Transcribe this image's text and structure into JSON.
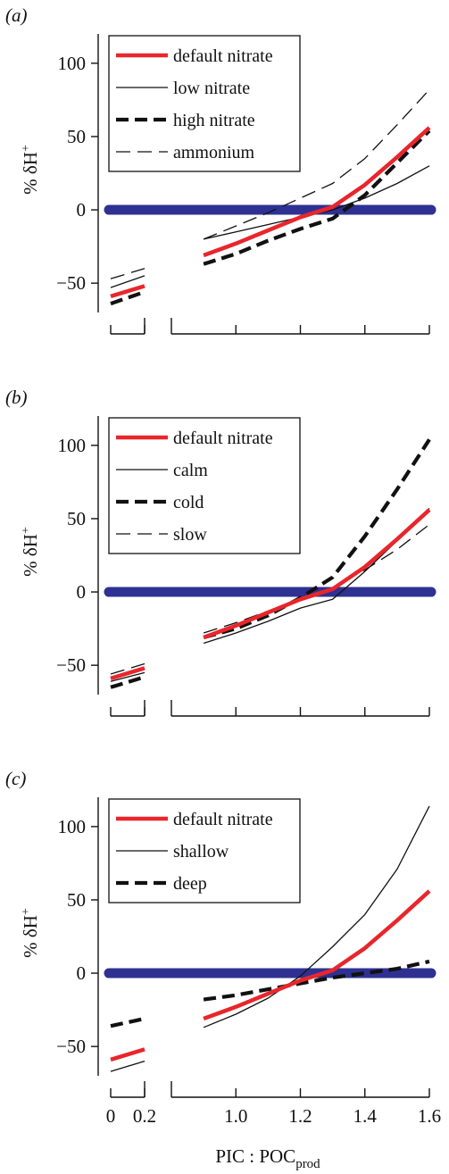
{
  "figure": {
    "shared_xlabel": {
      "main": "PIC : POC",
      "sub": "prod"
    },
    "ylabel": {
      "main": "% δH",
      "sup": "+"
    },
    "x_tick_labels": [
      "0",
      "0.2",
      "1.0",
      "1.2",
      "1.4",
      "1.6"
    ]
  },
  "colors": {
    "default": "#e8262b",
    "black": "#111111",
    "reference": "#2e3192"
  },
  "chart_data": [
    {
      "panel": "(a)",
      "type": "line",
      "xlabel": "",
      "ylabel": "% δH+",
      "ylim": [
        -70,
        120
      ],
      "y_ticks": [
        -50,
        0,
        50,
        100
      ],
      "x_ticks": [
        0,
        0.2,
        1.0,
        1.2,
        1.4,
        1.6
      ],
      "x_break": [
        0.2,
        0.8
      ],
      "legend_position": "top-left",
      "reference_line": {
        "y": 0,
        "x": [
          0,
          1.6
        ]
      },
      "series": [
        {
          "name": "default nitrate",
          "style": "thick-red-solid",
          "segments": [
            {
              "x": [
                0,
                0.2
              ],
              "y": [
                -59,
                -52
              ]
            },
            {
              "x": [
                0.9,
                1.0,
                1.1,
                1.2,
                1.3,
                1.4,
                1.5,
                1.6
              ],
              "y": [
                -31,
                -23,
                -14,
                -5,
                2,
                17,
                36,
                56
              ]
            }
          ]
        },
        {
          "name": "low nitrate",
          "style": "thin-black-solid",
          "segments": [
            {
              "x": [
                0,
                0.2
              ],
              "y": [
                -53,
                -45
              ]
            },
            {
              "x": [
                0.9,
                1.0,
                1.1,
                1.2,
                1.3,
                1.4,
                1.5,
                1.6
              ],
              "y": [
                -20,
                -15,
                -10,
                -5,
                0,
                8,
                18,
                30
              ]
            }
          ]
        },
        {
          "name": "high nitrate",
          "style": "thick-black-dashed",
          "segments": [
            {
              "x": [
                0,
                0.2
              ],
              "y": [
                -64,
                -56
              ]
            },
            {
              "x": [
                0.9,
                1.0,
                1.1,
                1.2,
                1.3,
                1.4,
                1.5,
                1.6
              ],
              "y": [
                -37,
                -30,
                -21,
                -13,
                -6,
                10,
                32,
                54
              ]
            }
          ]
        },
        {
          "name": "ammonium",
          "style": "thin-black-dashed",
          "segments": [
            {
              "x": [
                0,
                0.2
              ],
              "y": [
                -47,
                -40
              ]
            },
            {
              "x": [
                0.9,
                1.0,
                1.1,
                1.2,
                1.3,
                1.4,
                1.5,
                1.6
              ],
              "y": [
                -20,
                -11,
                -2,
                8,
                18,
                35,
                58,
                82
              ]
            }
          ]
        }
      ]
    },
    {
      "panel": "(b)",
      "type": "line",
      "xlabel": "",
      "ylabel": "% δH+",
      "ylim": [
        -70,
        120
      ],
      "y_ticks": [
        -50,
        0,
        50,
        100
      ],
      "x_ticks": [
        0,
        0.2,
        1.0,
        1.2,
        1.4,
        1.6
      ],
      "x_break": [
        0.2,
        0.8
      ],
      "legend_position": "top-left",
      "reference_line": {
        "y": 0,
        "x": [
          0,
          1.6
        ]
      },
      "series": [
        {
          "name": "default nitrate",
          "style": "thick-red-solid",
          "segments": [
            {
              "x": [
                0,
                0.2
              ],
              "y": [
                -59,
                -52
              ]
            },
            {
              "x": [
                0.9,
                1.0,
                1.1,
                1.2,
                1.3,
                1.4,
                1.5,
                1.6
              ],
              "y": [
                -31,
                -23,
                -14,
                -5,
                2,
                17,
                36,
                56
              ]
            }
          ]
        },
        {
          "name": "calm",
          "style": "thin-black-solid",
          "segments": [
            {
              "x": [
                0,
                0.2
              ],
              "y": [
                -61,
                -55
              ]
            },
            {
              "x": [
                0.9,
                1.0,
                1.1,
                1.2,
                1.3,
                1.4,
                1.5,
                1.6
              ],
              "y": [
                -35,
                -28,
                -20,
                -11,
                -5,
                14,
                35,
                57
              ]
            }
          ]
        },
        {
          "name": "cold",
          "style": "thick-black-dashed",
          "segments": [
            {
              "x": [
                0,
                0.2
              ],
              "y": [
                -65,
                -58
              ]
            },
            {
              "x": [
                0.9,
                1.0,
                1.1,
                1.2,
                1.3,
                1.4,
                1.5,
                1.6
              ],
              "y": [
                -31,
                -25,
                -16,
                -4,
                10,
                38,
                70,
                104
              ]
            }
          ]
        },
        {
          "name": "slow",
          "style": "thin-black-dashed",
          "segments": [
            {
              "x": [
                0,
                0.2
              ],
              "y": [
                -56,
                -49
              ]
            },
            {
              "x": [
                0.9,
                1.0,
                1.1,
                1.2,
                1.3,
                1.4,
                1.5,
                1.6
              ],
              "y": [
                -28,
                -21,
                -13,
                -5,
                3,
                15,
                29,
                46
              ]
            }
          ]
        }
      ]
    },
    {
      "panel": "(c)",
      "type": "line",
      "xlabel": "PIC : POC prod",
      "ylabel": "% δH+",
      "ylim": [
        -70,
        120
      ],
      "y_ticks": [
        -50,
        0,
        50,
        100
      ],
      "x_ticks": [
        0,
        0.2,
        1.0,
        1.2,
        1.4,
        1.6
      ],
      "x_break": [
        0.2,
        0.8
      ],
      "legend_position": "top-left",
      "reference_line": {
        "y": 0,
        "x": [
          0,
          1.6
        ]
      },
      "series": [
        {
          "name": "default nitrate",
          "style": "thick-red-solid",
          "segments": [
            {
              "x": [
                0,
                0.2
              ],
              "y": [
                -59,
                -52
              ]
            },
            {
              "x": [
                0.9,
                1.0,
                1.1,
                1.2,
                1.3,
                1.4,
                1.5,
                1.6
              ],
              "y": [
                -31,
                -23,
                -14,
                -5,
                2,
                17,
                36,
                56
              ]
            }
          ]
        },
        {
          "name": "shallow",
          "style": "thin-black-solid",
          "segments": [
            {
              "x": [
                0,
                0.2
              ],
              "y": [
                -67,
                -60
              ]
            },
            {
              "x": [
                0.9,
                1.0,
                1.1,
                1.2,
                1.3,
                1.4,
                1.5,
                1.6
              ],
              "y": [
                -37,
                -28,
                -17,
                -2,
                18,
                40,
                71,
                114
              ]
            }
          ]
        },
        {
          "name": "deep",
          "style": "thick-black-dashed",
          "segments": [
            {
              "x": [
                0,
                0.2
              ],
              "y": [
                -36,
                -31
              ]
            },
            {
              "x": [
                0.9,
                1.0,
                1.1,
                1.2,
                1.3,
                1.4,
                1.5,
                1.6
              ],
              "y": [
                -18,
                -15,
                -11,
                -7,
                -3,
                0,
                3,
                8
              ]
            }
          ]
        }
      ]
    }
  ]
}
